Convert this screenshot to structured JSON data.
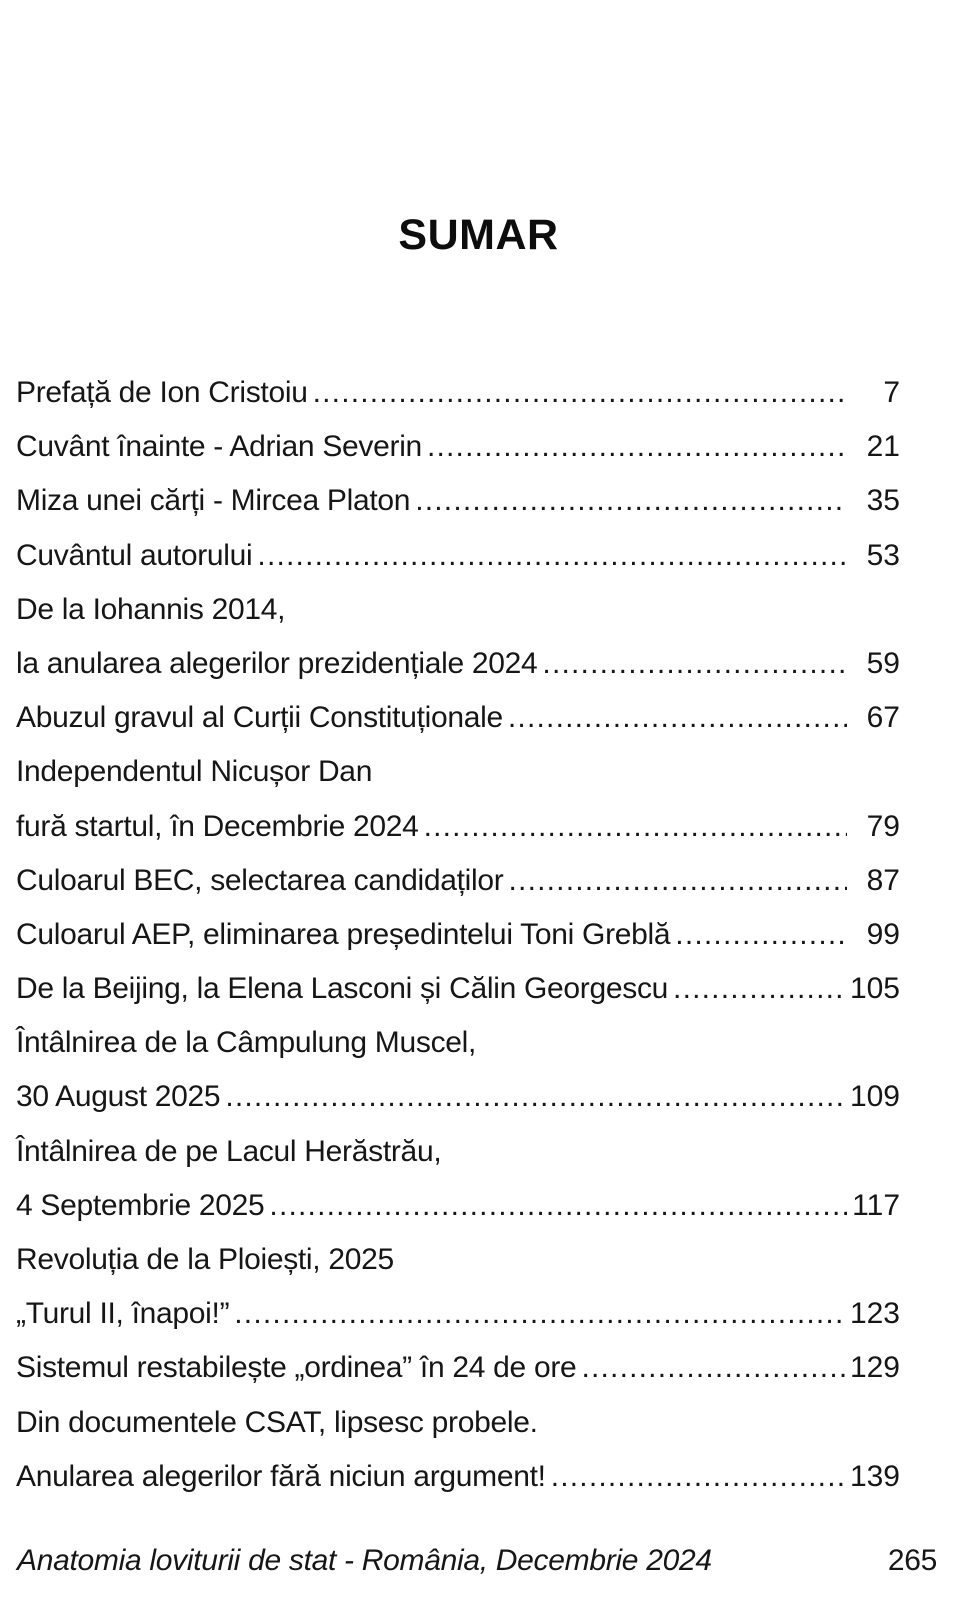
{
  "colors": {
    "background": "#ffffff",
    "text": "#161616"
  },
  "toc": {
    "title": "SUMAR",
    "entries": [
      {
        "text": "Prefață de Ion Cristoiu",
        "page": "7"
      },
      {
        "text": "Cuvânt înainte - Adrian Severin",
        "page": "21"
      },
      {
        "text": "Miza unei cărți - Mircea Platon",
        "page": "35"
      },
      {
        "text": "Cuvântul autorului",
        "page": "53"
      },
      {
        "text": "De la Iohannis 2014,",
        "page": ""
      },
      {
        "text": "la anularea alegerilor prezidențiale 2024",
        "page": "59"
      },
      {
        "text": "Abuzul gravul al Curții Constituționale",
        "page": "67"
      },
      {
        "text": "Independentul Nicușor Dan",
        "page": ""
      },
      {
        "text": "fură startul, în Decembrie 2024",
        "page": "79"
      },
      {
        "text": "Culoarul BEC, selectarea candidaților",
        "page": "87"
      },
      {
        "text": "Culoarul AEP, eliminarea președintelui Toni Greblă",
        "page": "99"
      },
      {
        "text": "De la Beijing, la Elena Lasconi și Călin Georgescu",
        "page": "105"
      },
      {
        "text": "Întâlnirea de la Câmpulung Muscel,",
        "page": ""
      },
      {
        "text": "30 August 2025",
        "page": "109"
      },
      {
        "text": "Întâlnirea de pe Lacul Herăstrău,",
        "page": ""
      },
      {
        "text": "4 Septembrie 2025",
        "page": "117"
      },
      {
        "text": "Revoluția de la Ploiești, 2025",
        "page": ""
      },
      {
        "text": "„Turul II, înapoi!”",
        "page": "123"
      },
      {
        "text": "Sistemul restabilește „ordinea” în 24 de ore",
        "page": "129"
      },
      {
        "text": "Din documentele CSAT, lipsesc probele.",
        "page": ""
      },
      {
        "text": "Anularea alegerilor fără niciun argument!",
        "page": "139"
      }
    ]
  },
  "footer": {
    "text": "Anatomia loviturii de stat - România, Decembrie 2024",
    "page": "265"
  }
}
